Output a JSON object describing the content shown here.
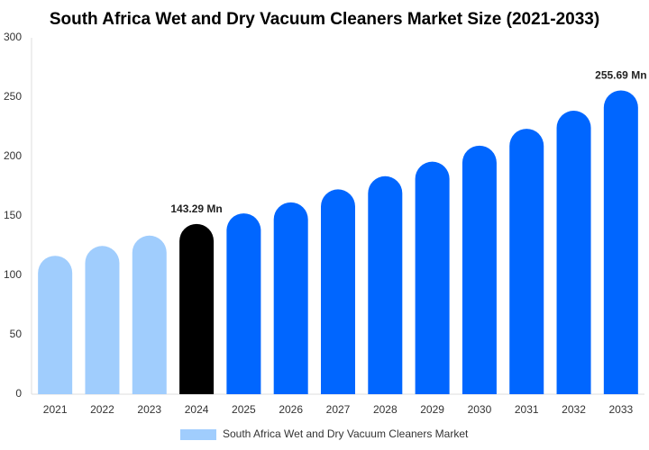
{
  "chart_data": {
    "type": "bar",
    "title": "South Africa Wet and Dry Vacuum Cleaners Market Size (2021-2033)",
    "categories": [
      "2021",
      "2022",
      "2023",
      "2024",
      "2025",
      "2026",
      "2027",
      "2028",
      "2029",
      "2030",
      "2031",
      "2032",
      "2033"
    ],
    "series": [
      {
        "name": "South Africa Wet and Dry Vacuum Cleaners Market",
        "color": "#a0cdfd",
        "values": [
          116.5,
          124.8,
          133.5,
          143.29,
          152.2,
          161.5,
          172.4,
          183.5,
          195.7,
          209.2,
          223.4,
          238.6,
          255.69
        ],
        "colors": [
          "#a0cdfd",
          "#a0cdfd",
          "#a0cdfd",
          "#000000",
          "#0066ff",
          "#0066ff",
          "#0066ff",
          "#0066ff",
          "#0066ff",
          "#0066ff",
          "#0066ff",
          "#0066ff",
          "#0066ff"
        ],
        "value_labels": [
          null,
          null,
          null,
          "143.29 Mn",
          null,
          null,
          null,
          null,
          null,
          null,
          null,
          null,
          "255.69 Mn"
        ]
      }
    ],
    "ylim": [
      0,
      300
    ],
    "yticks": [
      0,
      50,
      100,
      150,
      200,
      250,
      300
    ],
    "grid": false,
    "legend": "bottom"
  }
}
